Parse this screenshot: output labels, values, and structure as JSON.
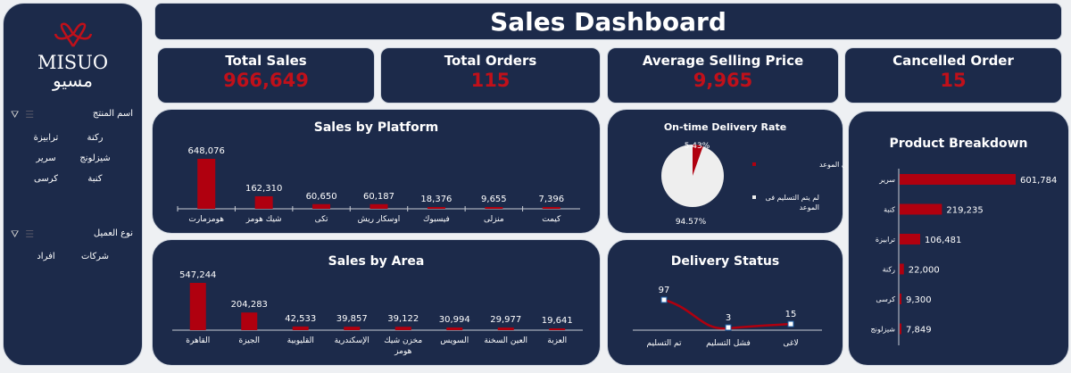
{
  "sidebar": {
    "brand_en": "MISUO",
    "brand_ar": "مسيو",
    "filters": [
      {
        "title": "اسم المنتج",
        "items": [
          "ركنة",
          "ترابيزة",
          "شيزلونج",
          "سرير",
          "كنبة",
          "كرسى"
        ]
      },
      {
        "title": "نوع العميل",
        "items": [
          "شركات",
          "افراد"
        ]
      }
    ]
  },
  "header": {
    "title": "Sales Dashboard"
  },
  "kpis": [
    {
      "label": "Total Sales",
      "value": "966,649"
    },
    {
      "label": "Total Orders",
      "value": "115"
    },
    {
      "label": "Average Selling Price",
      "value": "9,965"
    },
    {
      "label": "Cancelled Order",
      "value": "15"
    }
  ],
  "colors": {
    "card": "#1c2a4a",
    "accent": "#b0000f",
    "page": "#eef0f3"
  },
  "chart_data": [
    {
      "type": "bar",
      "title": "Sales by Platform",
      "categories": [
        "هومزمارت",
        "شيك هومز",
        "تكى",
        "اوسكار ريش",
        "فيسبوك",
        "منزلى",
        "كيمت"
      ],
      "values": [
        648076,
        162310,
        60650,
        60187,
        18376,
        9655,
        7396
      ]
    },
    {
      "type": "bar",
      "title": "Sales by Area",
      "categories": [
        "القاهرة",
        "الجيزة",
        "القليوبية",
        "الإسكندرية",
        "مخزن شيك هومز",
        "السويس",
        "العين السخنة",
        "العزبة"
      ],
      "values": [
        547244,
        204283,
        42533,
        39857,
        39122,
        30994,
        29977,
        19641
      ]
    },
    {
      "type": "pie",
      "title": "On-time Delivery Rate",
      "categories": [
        "تم التسليم فى الموعد",
        "لم يتم التسليم فى الموعد"
      ],
      "values": [
        5.43,
        94.57
      ],
      "labels": [
        "5.43%",
        "94.57%"
      ],
      "colors": [
        "#b0000f",
        "#eeeeee"
      ],
      "legend": "right"
    },
    {
      "type": "line",
      "title": "Delivery Status",
      "categories": [
        "تم التسليم",
        "فشل التسليم",
        "لاغى"
      ],
      "values": [
        97,
        3,
        15
      ]
    },
    {
      "type": "bar",
      "orientation": "horizontal",
      "title": "Product Breakdown",
      "categories": [
        "سرير",
        "كنبة",
        "ترابيزة",
        "ركنة",
        "كرسى",
        "شيزلونج"
      ],
      "values": [
        601784,
        219235,
        106481,
        22000,
        9300,
        7849
      ]
    }
  ]
}
